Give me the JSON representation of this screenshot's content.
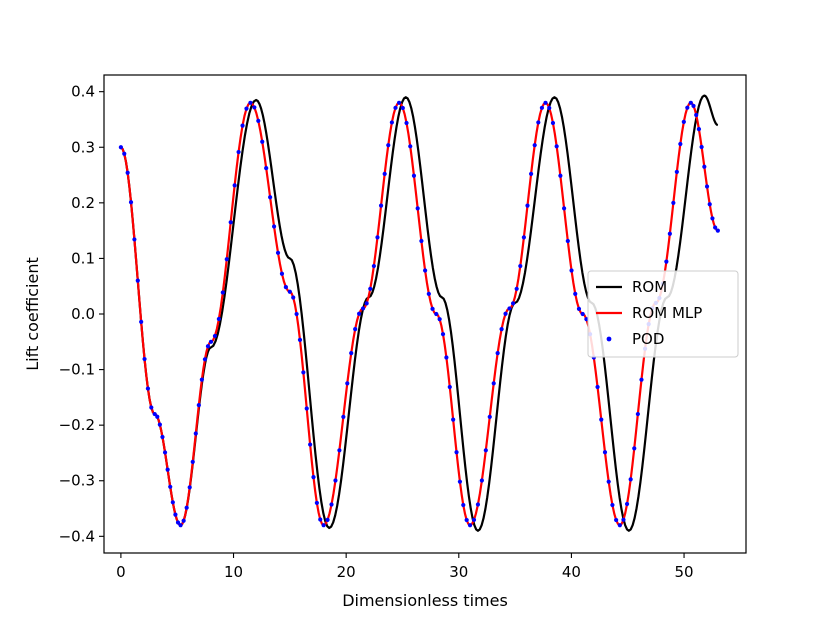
{
  "chart_data": {
    "type": "line",
    "title": "",
    "xlabel": "Dimensionless times",
    "ylabel": "Lift coefficient",
    "xlim": [
      -1.5,
      55.5
    ],
    "ylim": [
      -0.43,
      0.43
    ],
    "xticks": [
      0,
      10,
      20,
      30,
      40,
      50
    ],
    "xtick_labels": [
      "0",
      "10",
      "20",
      "30",
      "40",
      "50"
    ],
    "yticks": [
      0.4,
      0.3,
      0.2,
      0.1,
      0.0,
      -0.1,
      -0.2,
      -0.3,
      -0.4
    ],
    "ytick_labels": [
      "0.4",
      "0.3",
      "0.2",
      "0.1",
      "0.0",
      "−0.1",
      "−0.2",
      "−0.3",
      "−0.4"
    ],
    "grid": false,
    "legend_position": "center-right",
    "series": [
      {
        "name": "ROM",
        "style": "line",
        "color": "#000000",
        "x": [
          0,
          3,
          5.3,
          8,
          12,
          15,
          18.5,
          22,
          25.3,
          28.5,
          31.7,
          35,
          38.5,
          41.8,
          45.1,
          48.5,
          51.8,
          53
        ],
        "y": [
          0.3,
          -0.18,
          -0.38,
          -0.06,
          0.385,
          0.1,
          -0.385,
          0.03,
          0.39,
          0.03,
          -0.39,
          0.02,
          0.39,
          0.02,
          -0.39,
          0.03,
          0.393,
          0.34
        ]
      },
      {
        "name": "ROM MLP",
        "style": "line",
        "color": "#ff0000",
        "x": [
          0,
          3,
          5.3,
          8,
          11.5,
          15,
          18,
          21.5,
          24.7,
          28,
          31,
          34.5,
          37.7,
          41,
          44.3,
          47.5,
          50.6,
          53
        ],
        "y": [
          0.3,
          -0.18,
          -0.38,
          -0.05,
          0.38,
          0.04,
          -0.38,
          0.01,
          0.38,
          0.0,
          -0.38,
          0.01,
          0.38,
          0.0,
          -0.38,
          0.02,
          0.38,
          0.15
        ]
      },
      {
        "name": "POD",
        "style": "markers",
        "color": "#0000ff",
        "x": [
          0,
          3,
          5.3,
          8,
          11.5,
          15,
          18,
          21.5,
          24.7,
          28,
          31,
          34.5,
          37.7,
          41,
          44.3,
          47.5,
          50.6,
          53
        ],
        "y": [
          0.3,
          -0.18,
          -0.38,
          -0.05,
          0.38,
          0.04,
          -0.38,
          0.01,
          0.38,
          0.0,
          -0.38,
          0.01,
          0.38,
          0.0,
          -0.38,
          0.02,
          0.38,
          0.15
        ]
      }
    ]
  }
}
